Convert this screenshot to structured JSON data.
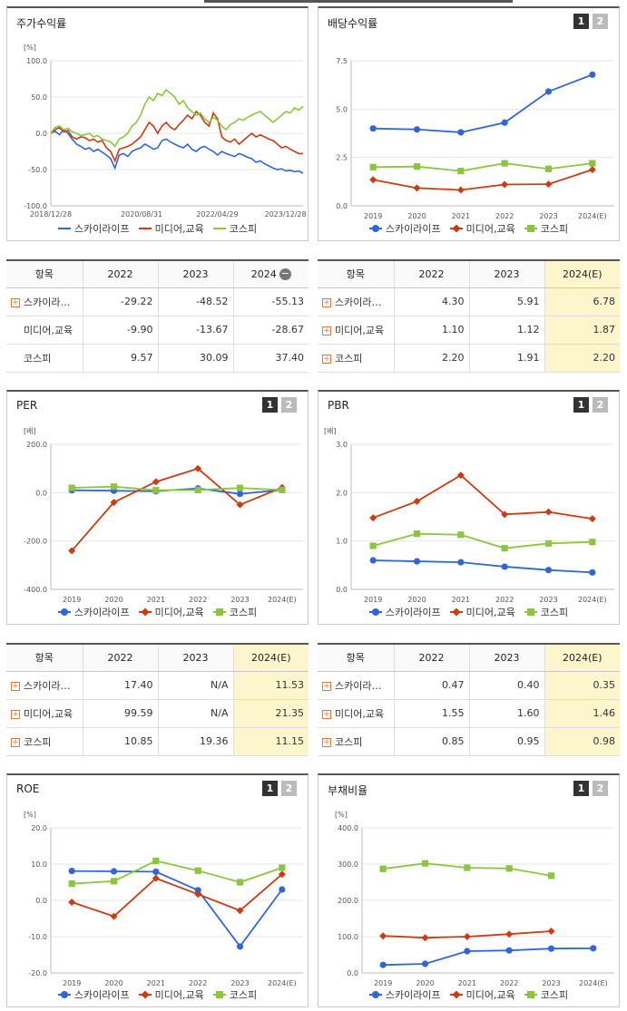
{
  "colors": {
    "sky": "#2f67d6",
    "media": "#cc3b12",
    "kospi": "#8cc63e"
  },
  "series_names": [
    "스카이라이프",
    "미디어,교육",
    "코스피"
  ],
  "panels": {
    "stock": {
      "title": "주가수익률",
      "unit": "[%]"
    },
    "dividend": {
      "title": "배당수익률",
      "page1": "1",
      "page2": "2"
    },
    "per": {
      "title": "PER",
      "unit": "[배]",
      "page1": "1",
      "page2": "2"
    },
    "pbr": {
      "title": "PBR",
      "unit": "[배]",
      "page1": "1",
      "page2": "2"
    },
    "roe": {
      "title": "ROE",
      "unit": "[%]",
      "page1": "1",
      "page2": "2"
    },
    "debt": {
      "title": "부채비율",
      "unit": "[%]",
      "page1": "1",
      "page2": "2"
    }
  },
  "chart_data": [
    {
      "id": "stock",
      "type": "line",
      "title": "주가수익률",
      "ylabel": "[%]",
      "ylim": [
        -100,
        100
      ],
      "yticks": [
        "100.0",
        "50.0",
        "0.0",
        "-50.0",
        "-100.0"
      ],
      "xticks": [
        "2018/12/28",
        "2020/08/31",
        "2022/04/29",
        "2023/12/28"
      ],
      "series": [
        {
          "name": "스카이라이프",
          "values": [
            0,
            3,
            -2,
            5,
            0,
            -8,
            -15,
            -18,
            -22,
            -20,
            -25,
            -22,
            -26,
            -30,
            -35,
            -48,
            -30,
            -28,
            -32,
            -25,
            -22,
            -20,
            -15,
            -18,
            -22,
            -20,
            -10,
            -8,
            -12,
            -15,
            -18,
            -20,
            -15,
            -22,
            -25,
            -20,
            -18,
            -22,
            -25,
            -30,
            -25,
            -28,
            -30,
            -32,
            -28,
            -30,
            -33,
            -35,
            -40,
            -38,
            -42,
            -45,
            -48,
            -50,
            -49,
            -52,
            -51,
            -53,
            -52,
            -55
          ]
        },
        {
          "name": "미디어,교육",
          "values": [
            0,
            5,
            8,
            2,
            4,
            -5,
            -8,
            -5,
            -6,
            -10,
            -8,
            -12,
            -10,
            -20,
            -25,
            -38,
            -22,
            -20,
            -18,
            -15,
            -10,
            -5,
            5,
            15,
            10,
            0,
            10,
            15,
            8,
            5,
            12,
            18,
            25,
            20,
            30,
            25,
            15,
            10,
            28,
            20,
            -5,
            -10,
            -12,
            -8,
            -15,
            -10,
            -5,
            0,
            -5,
            -2,
            -5,
            -8,
            -10,
            -15,
            -20,
            -18,
            -22,
            -25,
            -28,
            -28
          ]
        },
        {
          "name": "코스피",
          "values": [
            0,
            8,
            10,
            5,
            7,
            2,
            0,
            -3,
            -2,
            0,
            -5,
            -3,
            -8,
            -10,
            -12,
            -18,
            -8,
            -5,
            0,
            10,
            15,
            25,
            40,
            50,
            45,
            55,
            52,
            60,
            55,
            50,
            40,
            45,
            35,
            30,
            25,
            28,
            20,
            15,
            22,
            18,
            10,
            5,
            12,
            15,
            20,
            18,
            22,
            25,
            28,
            30,
            25,
            20,
            15,
            20,
            25,
            30,
            28,
            35,
            32,
            37
          ]
        }
      ]
    },
    {
      "id": "dividend",
      "type": "line",
      "ylim": [
        0,
        7.5
      ],
      "yticks": [
        "7.5",
        "5.0",
        "2.5",
        "0.0"
      ],
      "categories": [
        "2019",
        "2020",
        "2021",
        "2022",
        "2023",
        "2024(E)"
      ],
      "series": [
        {
          "name": "스카이라이프",
          "values": [
            4.0,
            3.95,
            3.8,
            4.3,
            5.91,
            6.78
          ]
        },
        {
          "name": "미디어,교육",
          "values": [
            1.35,
            0.92,
            0.82,
            1.1,
            1.12,
            1.87
          ]
        },
        {
          "name": "코스피",
          "values": [
            2.0,
            2.03,
            1.8,
            2.2,
            1.91,
            2.2
          ]
        }
      ]
    },
    {
      "id": "per",
      "type": "line",
      "ylim": [
        -400,
        200
      ],
      "yticks": [
        "200.0",
        "0.0",
        "-200.0",
        "-400.0"
      ],
      "categories": [
        "2019",
        "2020",
        "2021",
        "2022",
        "2023",
        "2024(E)"
      ],
      "series": [
        {
          "name": "스카이라이프",
          "values": [
            10,
            8,
            6,
            17.4,
            -5,
            11.53
          ]
        },
        {
          "name": "미디어,교육",
          "values": [
            -240,
            -40,
            45,
            99.59,
            -50,
            21.35
          ]
        },
        {
          "name": "코스피",
          "values": [
            20,
            25,
            10,
            10.85,
            19.36,
            11.15
          ]
        }
      ]
    },
    {
      "id": "pbr",
      "type": "line",
      "ylim": [
        0,
        3
      ],
      "yticks": [
        "3.0",
        "2.0",
        "1.0",
        "0.0"
      ],
      "categories": [
        "2019",
        "2020",
        "2021",
        "2022",
        "2023",
        "2024(E)"
      ],
      "series": [
        {
          "name": "스카이라이프",
          "values": [
            0.6,
            0.58,
            0.56,
            0.47,
            0.4,
            0.35
          ]
        },
        {
          "name": "미디어,교육",
          "values": [
            1.48,
            1.82,
            2.36,
            1.55,
            1.6,
            1.46
          ]
        },
        {
          "name": "코스피",
          "values": [
            0.9,
            1.15,
            1.13,
            0.85,
            0.95,
            0.98
          ]
        }
      ]
    },
    {
      "id": "roe",
      "type": "line",
      "ylim": [
        -20,
        20
      ],
      "yticks": [
        "20.0",
        "10.0",
        "0.0",
        "-10.0",
        "-20.0"
      ],
      "categories": [
        "2019",
        "2020",
        "2021",
        "2022",
        "2023",
        "2024(E)"
      ],
      "series": [
        {
          "name": "스카이라이프",
          "values": [
            8.1,
            8.0,
            7.9,
            2.8,
            -12.7,
            3.0
          ]
        },
        {
          "name": "미디어,교육",
          "values": [
            -0.5,
            -4.4,
            6.1,
            1.7,
            -2.8,
            7.2
          ]
        },
        {
          "name": "코스피",
          "values": [
            4.6,
            5.3,
            10.9,
            8.2,
            5.0,
            9.0
          ]
        }
      ]
    },
    {
      "id": "debt",
      "type": "line",
      "ylim": [
        0,
        400
      ],
      "yticks": [
        "400.0",
        "300.0",
        "200.0",
        "100.0",
        "0.0"
      ],
      "categories": [
        "2019",
        "2020",
        "2021",
        "2022",
        "2023",
        "2024(E)"
      ],
      "series": [
        {
          "name": "스카이라이프",
          "values": [
            22,
            25,
            60,
            62,
            67,
            68
          ]
        },
        {
          "name": "미디어,교육",
          "values": [
            102,
            97,
            100,
            107,
            115,
            null
          ]
        },
        {
          "name": "코스피",
          "values": [
            287,
            302,
            290,
            288,
            268,
            null
          ]
        }
      ]
    }
  ],
  "tables": {
    "stock": {
      "header": [
        "항목",
        "2022",
        "2023",
        "2024"
      ],
      "rows": [
        {
          "label": "스카이라…",
          "plus": true,
          "values": [
            "-29.22",
            "-48.52",
            "-55.13"
          ]
        },
        {
          "label": "미디어,교육",
          "plus": false,
          "values": [
            "-9.90",
            "-13.67",
            "-28.67"
          ]
        },
        {
          "label": "코스피",
          "plus": false,
          "values": [
            "9.57",
            "30.09",
            "37.40"
          ]
        }
      ]
    },
    "dividend": {
      "header": [
        "항목",
        "2022",
        "2023",
        "2024(E)"
      ],
      "rows": [
        {
          "label": "스카이라…",
          "plus": true,
          "values": [
            "4.30",
            "5.91",
            "6.78"
          ]
        },
        {
          "label": "미디어,교육",
          "plus": true,
          "values": [
            "1.10",
            "1.12",
            "1.87"
          ]
        },
        {
          "label": "코스피",
          "plus": true,
          "values": [
            "2.20",
            "1.91",
            "2.20"
          ]
        }
      ]
    },
    "per": {
      "header": [
        "항목",
        "2022",
        "2023",
        "2024(E)"
      ],
      "rows": [
        {
          "label": "스카이라…",
          "plus": true,
          "values": [
            "17.40",
            "N/A",
            "11.53"
          ]
        },
        {
          "label": "미디어,교육",
          "plus": true,
          "values": [
            "99.59",
            "N/A",
            "21.35"
          ]
        },
        {
          "label": "코스피",
          "plus": true,
          "values": [
            "10.85",
            "19.36",
            "11.15"
          ]
        }
      ]
    },
    "pbr": {
      "header": [
        "항목",
        "2022",
        "2023",
        "2024(E)"
      ],
      "rows": [
        {
          "label": "스카이라…",
          "plus": true,
          "values": [
            "0.47",
            "0.40",
            "0.35"
          ]
        },
        {
          "label": "미디어,교육",
          "plus": true,
          "values": [
            "1.55",
            "1.60",
            "1.46"
          ]
        },
        {
          "label": "코스피",
          "plus": true,
          "values": [
            "0.85",
            "0.95",
            "0.98"
          ]
        }
      ]
    }
  }
}
